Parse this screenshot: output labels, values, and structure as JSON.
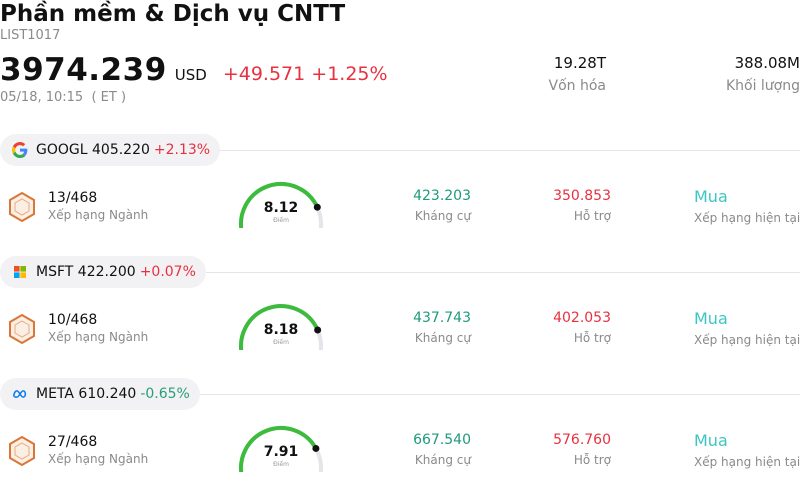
{
  "header": {
    "title": "Phần mềm & Dịch vụ CNTT",
    "code": "LIST1017",
    "price": "3974.239",
    "currency": "USD",
    "change": "+49.571 +1.25%",
    "timestamp": "05/18, 10:15  ( ET )",
    "market_cap": {
      "value": "19.28T",
      "label": "Vốn hóa"
    },
    "volume": {
      "value": "388.08M",
      "label": "Khối lượng"
    }
  },
  "colors": {
    "positive": "#e8313f",
    "negative": "#2a9d77",
    "resistance": "#1e9a7c",
    "support": "#e8313f",
    "rating": "#3cc6c2",
    "gauge": "#3dbb3d"
  },
  "stocks": [
    {
      "logo_icon": "google-icon",
      "symbol": "GOOGL",
      "price": "405.220",
      "change": "+2.13%",
      "rank": "13/468",
      "rank_label": "Xếp hạng Ngành",
      "score": "8.12",
      "score_value": 8.12,
      "score_label": "Điểm",
      "resistance": "423.203",
      "resistance_label": "Kháng cự",
      "support": "350.853",
      "support_label": "Hỗ trợ",
      "rating": "Mua",
      "rating_label": "Xếp hạng hiện tại"
    },
    {
      "logo_icon": "microsoft-icon",
      "symbol": "MSFT",
      "price": "422.200",
      "change": "+0.07%",
      "rank": "10/468",
      "rank_label": "Xếp hạng Ngành",
      "score": "8.18",
      "score_value": 8.18,
      "score_label": "Điểm",
      "resistance": "437.743",
      "resistance_label": "Kháng cự",
      "support": "402.053",
      "support_label": "Hỗ trợ",
      "rating": "Mua",
      "rating_label": "Xếp hạng hiện tại"
    },
    {
      "logo_icon": "meta-icon",
      "symbol": "META",
      "price": "610.240",
      "change": "-0.65%",
      "rank": "27/468",
      "rank_label": "Xếp hạng Ngành",
      "score": "7.91",
      "score_value": 7.91,
      "score_label": "Điểm",
      "resistance": "667.540",
      "resistance_label": "Kháng cự",
      "support": "576.760",
      "support_label": "Hỗ trợ",
      "rating": "Mua",
      "rating_label": "Xếp hạng hiện tại"
    }
  ]
}
